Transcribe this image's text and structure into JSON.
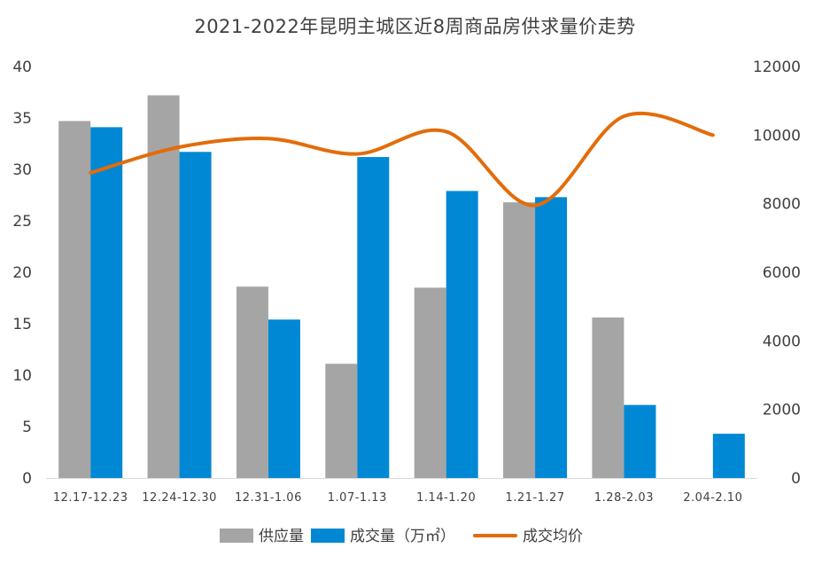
{
  "chart_data": {
    "type": "bar",
    "title": "2021-2022年昆明主城区近8周商品房供求量价走势",
    "categories": [
      "12.17-12.23",
      "12.24-12.30",
      "12.31-1.06",
      "1.07-1.13",
      "1.14-1.20",
      "1.21-1.27",
      "1.28-2.03",
      "2.04-2.10"
    ],
    "y_left": {
      "ylim": [
        0,
        40
      ],
      "ticks": [
        0,
        5,
        10,
        15,
        20,
        25,
        30,
        35,
        40
      ]
    },
    "y_right": {
      "ylim": [
        0,
        12000
      ],
      "ticks": [
        0,
        2000,
        4000,
        6000,
        8000,
        10000,
        12000
      ]
    },
    "grid": false,
    "legend_position": "bottom",
    "series": [
      {
        "name": "供应量",
        "type": "bar",
        "axis": "left",
        "color": "#a5a5a5",
        "values": [
          34.7,
          37.2,
          18.6,
          11.1,
          18.5,
          26.8,
          15.6,
          0
        ]
      },
      {
        "name": "成交量（万㎡）",
        "type": "bar",
        "axis": "left",
        "color": "#0088d4",
        "values": [
          34.1,
          31.7,
          15.4,
          31.2,
          27.9,
          27.3,
          7.1,
          4.3
        ]
      },
      {
        "name": "成交均价",
        "type": "line",
        "axis": "right",
        "color": "#e36c0a",
        "values": [
          8900,
          9650,
          9900,
          9450,
          10100,
          7950,
          10550,
          10000
        ]
      }
    ]
  }
}
